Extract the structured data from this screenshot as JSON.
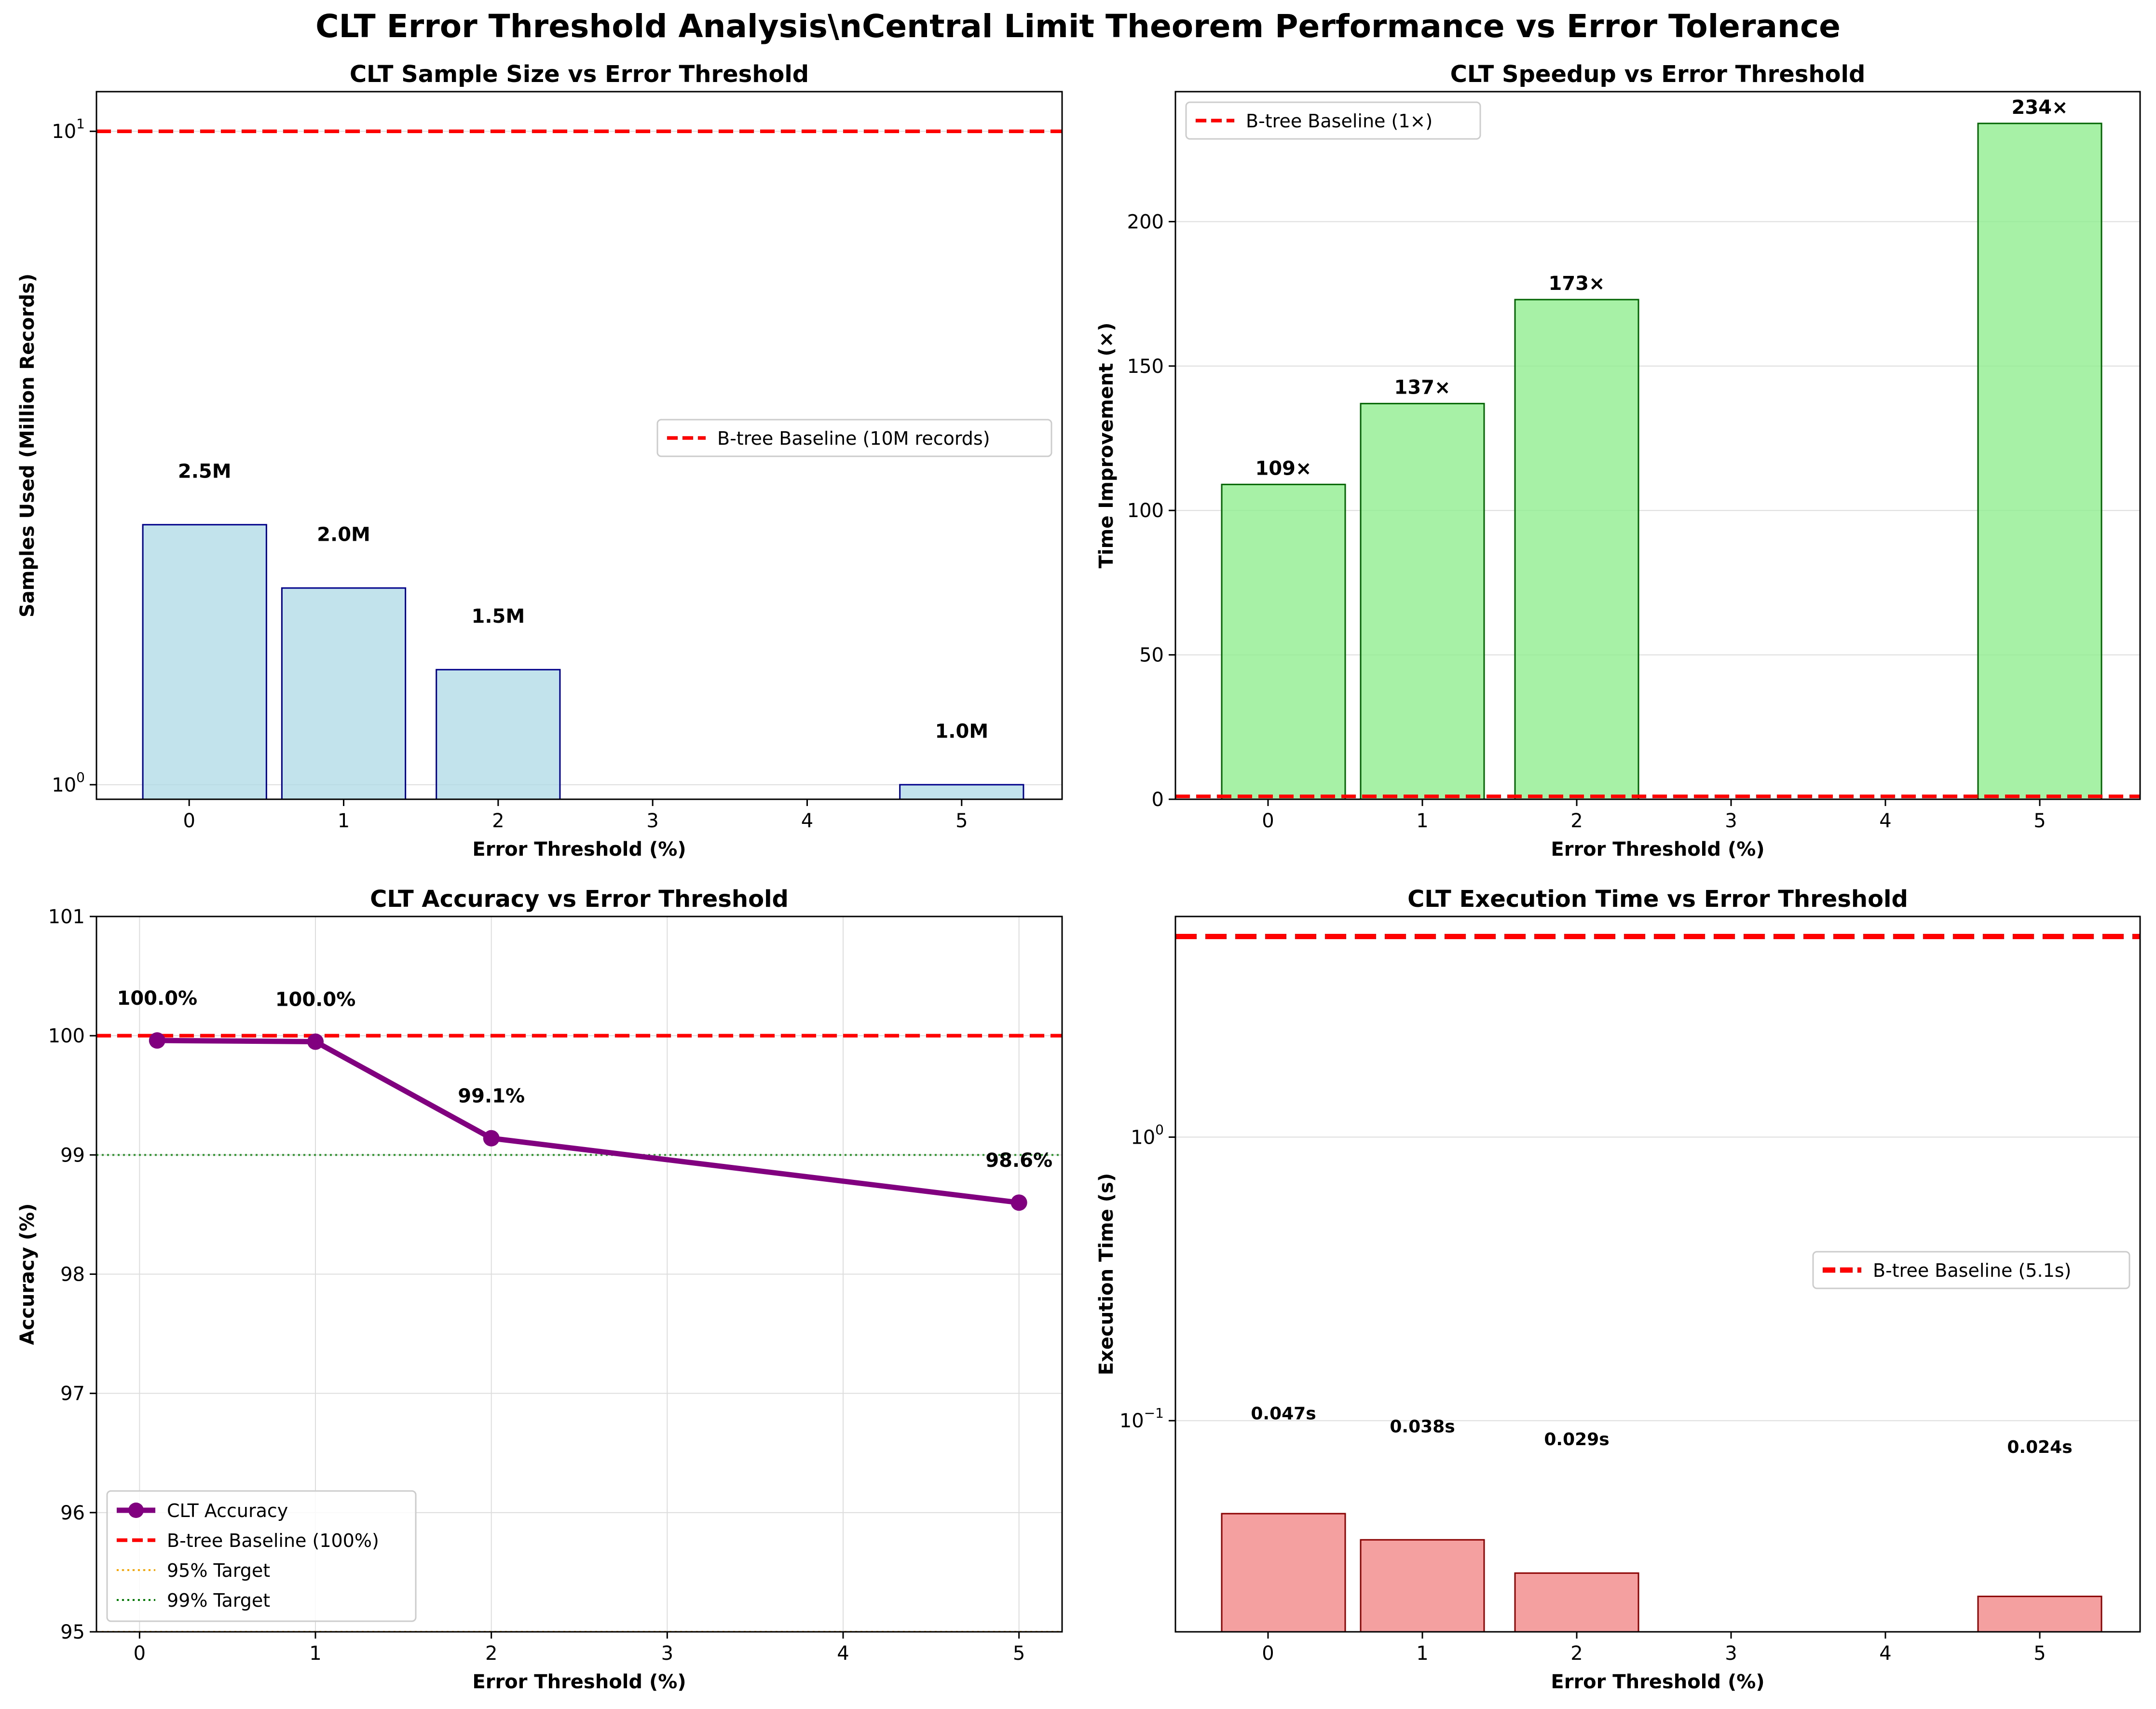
{
  "figure": {
    "suptitle": "CLT Error Threshold Analysis\\nCentral Limit Theorem Performance vs Error Tolerance"
  },
  "colors": {
    "baseline": "#ff0000",
    "samples_fill": "#add8e6",
    "samples_edge": "#00008b",
    "speedup_fill": "#90ee90",
    "speedup_edge": "#006400",
    "accuracy_line": "#800080",
    "target95": "#ffa500",
    "target99": "#008000",
    "time_fill": "#f08080",
    "time_edge": "#8b0000",
    "grid": "#dddddd"
  },
  "chart_data": [
    {
      "type": "bar",
      "title": "CLT Sample Size vs Error Threshold",
      "xlabel": "Error Threshold (%)",
      "ylabel": "Samples Used (Million Records)",
      "yscale": "log",
      "ylim": [
        0.95,
        11.5
      ],
      "xlim": [
        -0.6,
        5.65
      ],
      "yticks": [
        {
          "v": 1,
          "base": "10",
          "exp": "0"
        },
        {
          "v": 10,
          "base": "10",
          "exp": "1"
        }
      ],
      "xticks": [
        {
          "pos": 0,
          "label": "0"
        },
        {
          "pos": 1,
          "label": "1"
        },
        {
          "pos": 2,
          "label": "2"
        },
        {
          "pos": 3,
          "label": "3"
        },
        {
          "pos": 4,
          "label": "4"
        },
        {
          "pos": 5,
          "label": "5"
        }
      ],
      "x": [
        0.1,
        1,
        2,
        5
      ],
      "values": [
        2.5,
        2.0,
        1.5,
        1.0
      ],
      "bar_labels": [
        "2.5M",
        "2.0M",
        "1.5M",
        "1.0M"
      ],
      "baseline": 10,
      "legend": {
        "label": "B-tree Baseline (10M records)",
        "position": "center-right"
      }
    },
    {
      "type": "bar",
      "title": "CLT Speedup vs Error Threshold",
      "xlabel": "Error Threshold (%)",
      "ylabel": "Time Improvement (×)",
      "yscale": "linear",
      "ylim": [
        0,
        245
      ],
      "xlim": [
        -0.6,
        5.65
      ],
      "yticks": [
        {
          "v": 0,
          "label": "0"
        },
        {
          "v": 50,
          "label": "50"
        },
        {
          "v": 100,
          "label": "100"
        },
        {
          "v": 150,
          "label": "150"
        },
        {
          "v": 200,
          "label": "200"
        }
      ],
      "xticks": [
        {
          "pos": 0,
          "label": "0"
        },
        {
          "pos": 1,
          "label": "1"
        },
        {
          "pos": 2,
          "label": "2"
        },
        {
          "pos": 3,
          "label": "3"
        },
        {
          "pos": 4,
          "label": "4"
        },
        {
          "pos": 5,
          "label": "5"
        }
      ],
      "x": [
        0.1,
        1,
        2,
        5
      ],
      "values": [
        109,
        137,
        173,
        234
      ],
      "bar_labels": [
        "109×",
        "137×",
        "173×",
        "234×"
      ],
      "baseline": 1,
      "legend": {
        "label": "B-tree Baseline (1×)",
        "position": "upper-left"
      }
    },
    {
      "type": "line",
      "title": "CLT Accuracy vs Error Threshold",
      "xlabel": "Error Threshold (%)",
      "ylabel": "Accuracy (%)",
      "ylim": [
        95,
        101
      ],
      "xlim": [
        -0.245,
        5.245
      ],
      "yticks": [
        {
          "v": 95,
          "label": "95"
        },
        {
          "v": 96,
          "label": "96"
        },
        {
          "v": 97,
          "label": "97"
        },
        {
          "v": 98,
          "label": "98"
        },
        {
          "v": 99,
          "label": "99"
        },
        {
          "v": 100,
          "label": "100"
        },
        {
          "v": 101,
          "label": "101"
        }
      ],
      "xticks": [
        {
          "pos": 0,
          "label": "0"
        },
        {
          "pos": 1,
          "label": "1"
        },
        {
          "pos": 2,
          "label": "2"
        },
        {
          "pos": 3,
          "label": "3"
        },
        {
          "pos": 4,
          "label": "4"
        },
        {
          "pos": 5,
          "label": "5"
        }
      ],
      "x": [
        0.1,
        1,
        2,
        5
      ],
      "values": [
        99.96,
        99.95,
        99.14,
        98.6
      ],
      "point_labels": [
        "100.0%",
        "100.0%",
        "99.1%",
        "98.6%"
      ],
      "baseline": 100,
      "target95": 95,
      "target99": 99,
      "legend": {
        "position": "lower-left",
        "entries": [
          "CLT Accuracy",
          "B-tree Baseline (100%)",
          "95% Target",
          "99% Target"
        ]
      }
    },
    {
      "type": "bar",
      "title": "CLT Execution Time vs Error Threshold",
      "xlabel": "Error Threshold (%)",
      "ylabel": "Execution Time (s)",
      "yscale": "log",
      "ylim": [
        0.018,
        6.0
      ],
      "xlim": [
        -0.6,
        5.65
      ],
      "yticks": [
        {
          "v": 0.1,
          "base": "10",
          "exp": "−1"
        },
        {
          "v": 1,
          "base": "10",
          "exp": "0"
        }
      ],
      "xticks": [
        {
          "pos": 0,
          "label": "0"
        },
        {
          "pos": 1,
          "label": "1"
        },
        {
          "pos": 2,
          "label": "2"
        },
        {
          "pos": 3,
          "label": "3"
        },
        {
          "pos": 4,
          "label": "4"
        },
        {
          "pos": 5,
          "label": "5"
        }
      ],
      "x": [
        0.1,
        1,
        2,
        5
      ],
      "values": [
        0.047,
        0.038,
        0.029,
        0.024
      ],
      "bar_labels": [
        "0.047s",
        "0.038s",
        "0.029s",
        "0.024s"
      ],
      "label_y": [
        0.101,
        0.091,
        0.082,
        0.077
      ],
      "baseline": 5.1,
      "legend": {
        "label": "B-tree Baseline (5.1s)",
        "position": "center-right"
      }
    }
  ]
}
